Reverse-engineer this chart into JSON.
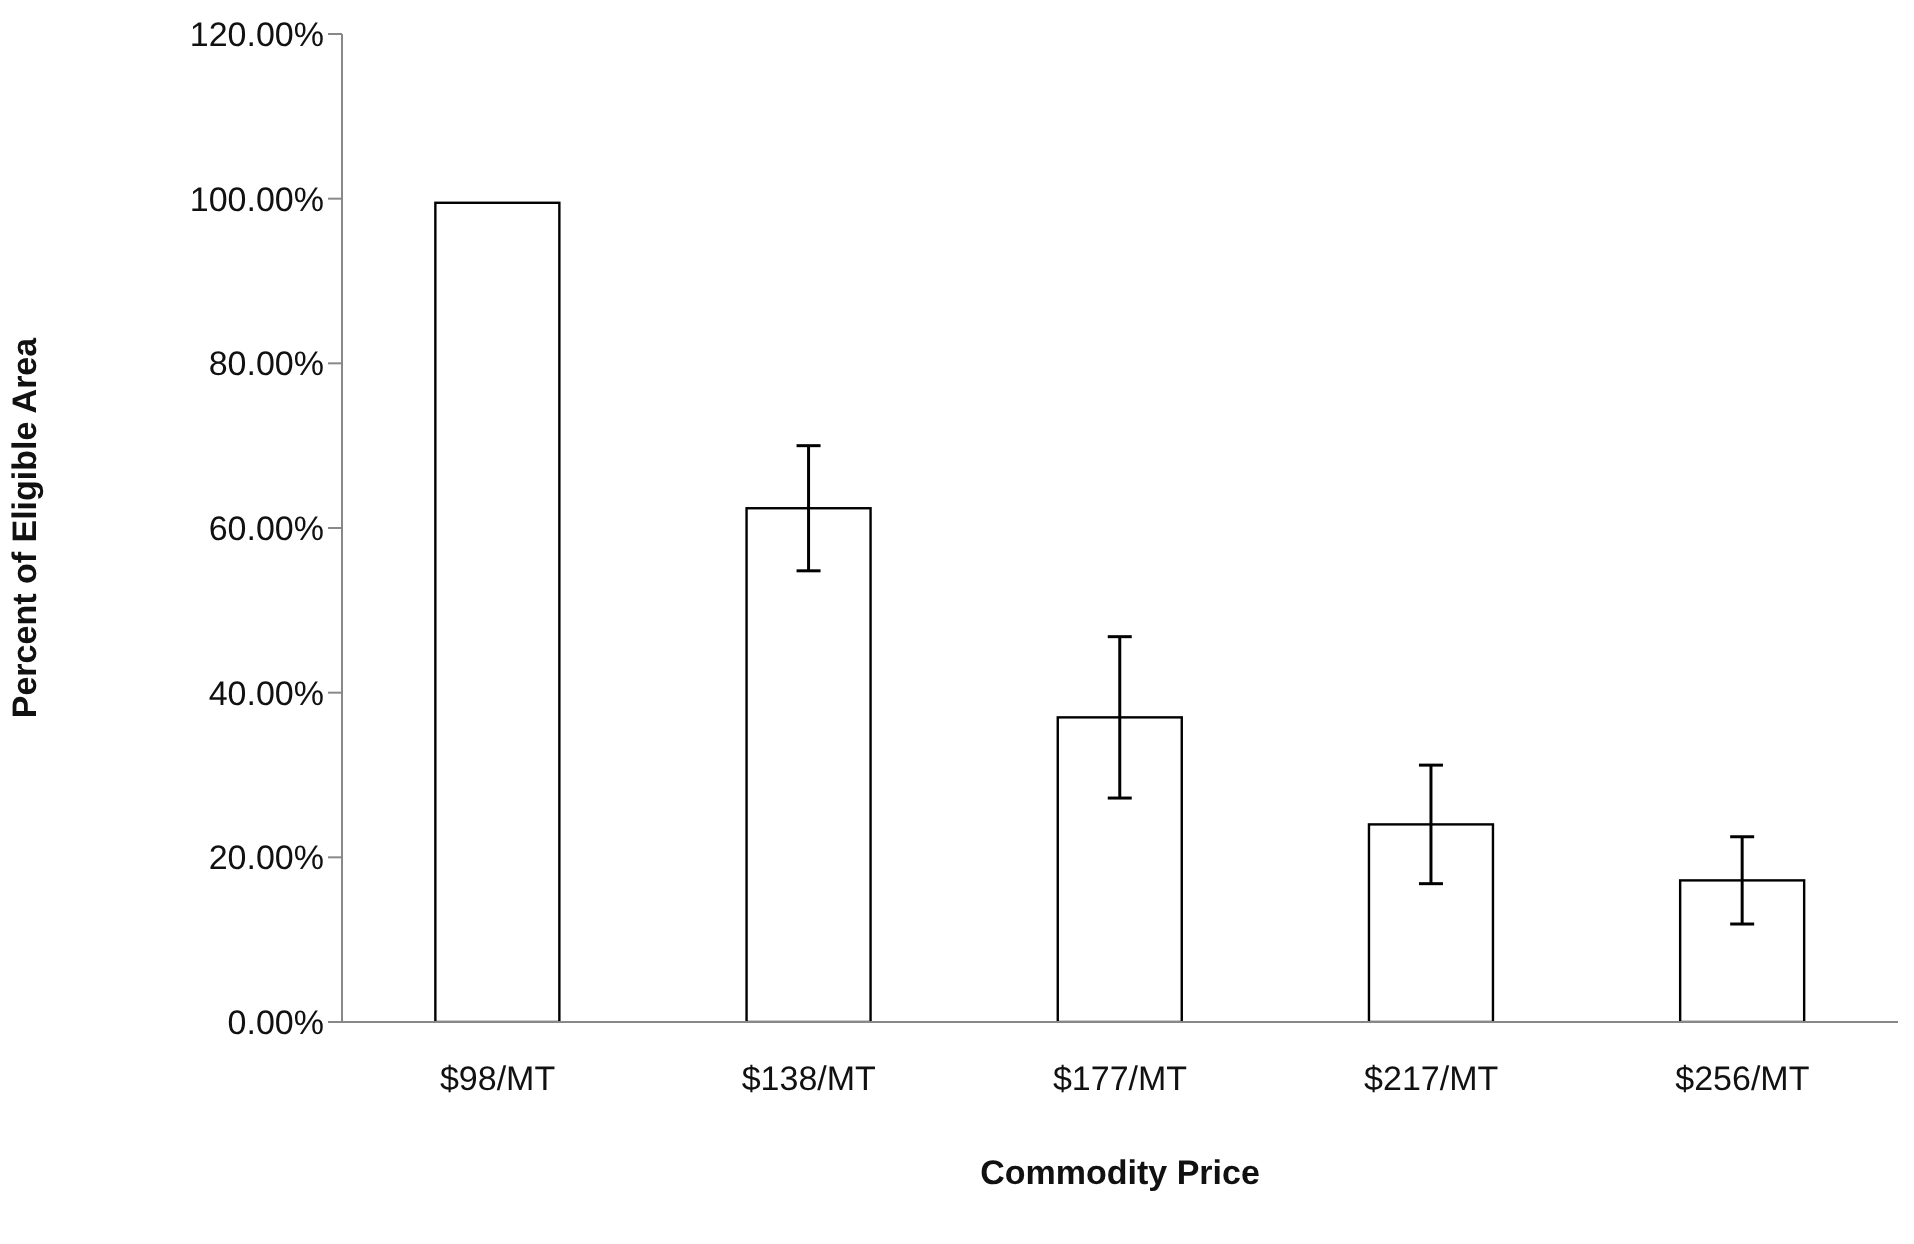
{
  "chart_data": {
    "type": "bar",
    "xlabel": "Commodity Price",
    "ylabel": "Percent of Eligible Area",
    "categories": [
      "$98/MT",
      "$138/MT",
      "$177/MT",
      "$217/MT",
      "$256/MT"
    ],
    "values": [
      99.5,
      62.4,
      37.0,
      24.0,
      17.2
    ],
    "errors": [
      null,
      7.6,
      9.8,
      7.2,
      5.3
    ],
    "color": "#ffffff",
    "ylim": [
      0,
      120
    ],
    "yticks": [
      {
        "value": 0,
        "label": "0.00%"
      },
      {
        "value": 20,
        "label": "20.00%"
      },
      {
        "value": 40,
        "label": "40.00%"
      },
      {
        "value": 60,
        "label": "60.00%"
      },
      {
        "value": 80,
        "label": "80.00%"
      },
      {
        "value": 100,
        "label": "100.00%"
      },
      {
        "value": 120,
        "label": "120.00%"
      }
    ],
    "grid": false,
    "legend": false
  }
}
